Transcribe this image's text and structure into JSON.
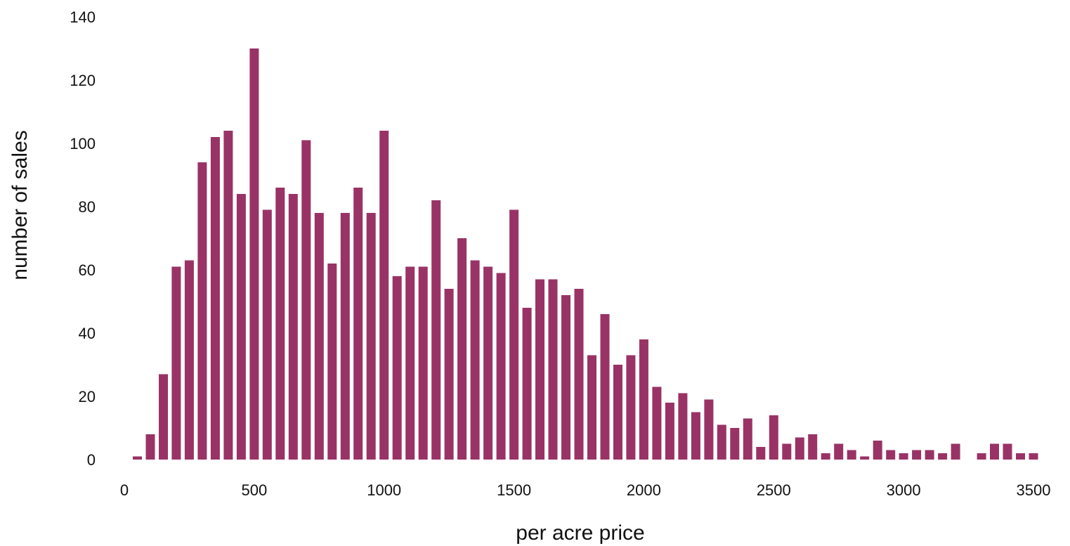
{
  "chart_data": {
    "type": "bar",
    "title": "",
    "xlabel": "per acre price",
    "ylabel": "number of sales",
    "xlim": [
      0,
      3500
    ],
    "ylim": [
      0,
      140
    ],
    "xticks": [
      0,
      500,
      1000,
      1500,
      2000,
      2500,
      3000,
      3500
    ],
    "yticks": [
      0,
      20,
      40,
      60,
      80,
      100,
      120,
      140
    ],
    "grid": false,
    "legend": "none",
    "bar_color": "#993366",
    "bin_width": 50,
    "x": [
      50,
      100,
      150,
      200,
      250,
      300,
      350,
      400,
      450,
      500,
      550,
      600,
      650,
      700,
      750,
      800,
      850,
      900,
      950,
      1000,
      1050,
      1100,
      1150,
      1200,
      1250,
      1300,
      1350,
      1400,
      1450,
      1500,
      1550,
      1600,
      1650,
      1700,
      1750,
      1800,
      1850,
      1900,
      1950,
      2000,
      2050,
      2100,
      2150,
      2200,
      2250,
      2300,
      2350,
      2400,
      2450,
      2500,
      2550,
      2600,
      2650,
      2700,
      2750,
      2800,
      2850,
      2900,
      2950,
      3000,
      3050,
      3100,
      3150,
      3200,
      3300,
      3350,
      3400,
      3450,
      3500
    ],
    "values": [
      1,
      8,
      27,
      61,
      63,
      94,
      102,
      104,
      84,
      130,
      79,
      86,
      84,
      101,
      78,
      62,
      78,
      86,
      78,
      104,
      58,
      61,
      61,
      82,
      54,
      70,
      63,
      61,
      59,
      79,
      48,
      57,
      57,
      52,
      54,
      33,
      46,
      30,
      33,
      38,
      23,
      18,
      21,
      15,
      19,
      11,
      10,
      13,
      4,
      14,
      5,
      7,
      8,
      2,
      5,
      3,
      1,
      6,
      3,
      2,
      3,
      3,
      2,
      5,
      2,
      5,
      5,
      2,
      2
    ]
  }
}
